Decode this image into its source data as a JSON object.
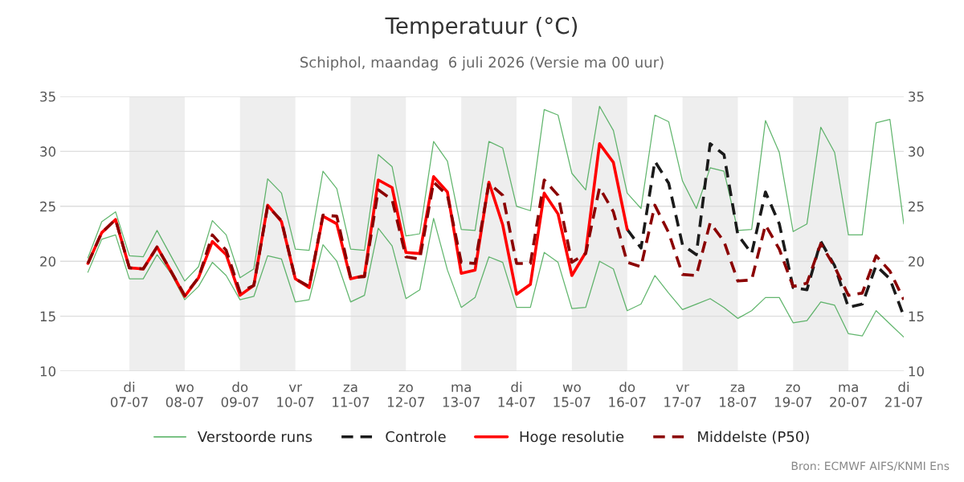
{
  "chart_data": {
    "type": "line",
    "title": "Temperatuur (°C)",
    "subtitle": "Schiphol, maandag  6 juli 2026 (Versie ma 00 uur)",
    "x": [
      "2026-07-06T06:00",
      "2026-07-06T12:00",
      "2026-07-06T18:00",
      "2026-07-07T00:00",
      "2026-07-07T06:00",
      "2026-07-07T12:00",
      "2026-07-07T18:00",
      "2026-07-08T00:00",
      "2026-07-08T06:00",
      "2026-07-08T12:00",
      "2026-07-08T18:00",
      "2026-07-09T00:00",
      "2026-07-09T06:00",
      "2026-07-09T12:00",
      "2026-07-09T18:00",
      "2026-07-10T00:00",
      "2026-07-10T06:00",
      "2026-07-10T12:00",
      "2026-07-10T18:00",
      "2026-07-11T00:00",
      "2026-07-11T06:00",
      "2026-07-11T12:00",
      "2026-07-11T18:00",
      "2026-07-12T00:00",
      "2026-07-12T06:00",
      "2026-07-12T12:00",
      "2026-07-12T18:00",
      "2026-07-13T00:00",
      "2026-07-13T06:00",
      "2026-07-13T12:00",
      "2026-07-13T18:00",
      "2026-07-14T00:00",
      "2026-07-14T06:00",
      "2026-07-14T12:00",
      "2026-07-14T18:00",
      "2026-07-15T00:00",
      "2026-07-15T06:00",
      "2026-07-15T12:00",
      "2026-07-15T18:00",
      "2026-07-16T00:00",
      "2026-07-16T06:00",
      "2026-07-16T12:00",
      "2026-07-16T18:00",
      "2026-07-17T00:00",
      "2026-07-17T06:00",
      "2026-07-17T12:00",
      "2026-07-17T18:00",
      "2026-07-18T00:00",
      "2026-07-18T06:00",
      "2026-07-18T12:00",
      "2026-07-18T18:00",
      "2026-07-19T00:00",
      "2026-07-19T06:00",
      "2026-07-19T12:00",
      "2026-07-19T18:00",
      "2026-07-20T00:00",
      "2026-07-20T06:00",
      "2026-07-20T12:00",
      "2026-07-20T18:00",
      "2026-07-21T00:00"
    ],
    "series": [
      {
        "name": "Verstoorde runs",
        "color": "#2e9e3e",
        "line_style": "solid",
        "values": [
          20.3,
          23.6,
          24.5,
          20.5,
          20.4,
          22.8,
          20.5,
          18.2,
          19.5,
          23.7,
          22.4,
          18.5,
          19.3,
          27.5,
          26.2,
          21.1,
          21.0,
          28.2,
          26.6,
          21.1,
          21.0,
          29.7,
          28.6,
          22.3,
          22.5,
          30.9,
          29.1,
          22.9,
          22.8,
          30.9,
          30.3,
          25.0,
          24.6,
          33.8,
          33.3,
          28.0,
          26.5,
          34.1,
          31.9,
          26.2,
          24.8,
          33.3,
          32.7,
          27.3,
          24.8,
          28.5,
          28.2,
          22.8,
          22.9,
          32.8,
          29.9,
          22.7,
          23.4,
          32.2,
          29.9,
          22.4,
          22.4,
          32.6,
          32.9,
          23.4
        ]
      },
      {
        "color": "#2e9e3e",
        "line_style": "solid",
        "values": [
          19.0,
          22.0,
          22.4,
          18.4,
          18.4,
          20.6,
          18.9,
          16.5,
          17.7,
          19.9,
          18.7,
          16.5,
          16.8,
          20.5,
          20.2,
          16.3,
          16.5,
          21.5,
          20.0,
          16.3,
          16.9,
          23.0,
          21.4,
          16.6,
          17.4,
          23.9,
          19.2,
          15.8,
          16.7,
          20.4,
          19.9,
          15.8,
          15.8,
          20.8,
          19.9,
          15.7,
          15.8,
          20.0,
          19.3,
          15.5,
          16.1,
          18.7,
          17.1,
          15.6,
          16.1,
          16.6,
          15.8,
          14.8,
          15.5,
          16.7,
          16.7,
          14.4,
          14.6,
          16.3,
          16.0,
          13.4,
          13.2,
          15.5,
          14.3,
          13.1
        ]
      },
      {
        "name": "Controle",
        "color": "#1a1a1a",
        "line_style": "dashed",
        "values": [
          null,
          null,
          null,
          null,
          null,
          null,
          null,
          null,
          null,
          null,
          null,
          null,
          null,
          null,
          null,
          null,
          null,
          null,
          null,
          null,
          null,
          null,
          null,
          null,
          null,
          null,
          null,
          null,
          null,
          null,
          null,
          null,
          null,
          null,
          null,
          null,
          null,
          null,
          null,
          22.9,
          21.2,
          29.1,
          27.1,
          21.5,
          20.6,
          30.7,
          29.7,
          22.4,
          20.7,
          26.3,
          23.4,
          17.6,
          17.4,
          21.8,
          19.6,
          15.8,
          16.1,
          19.6,
          18.4,
          15.0
        ]
      },
      {
        "name": "Hoge resolutie",
        "color": "#ff0000",
        "line_style": "solid",
        "values": [
          19.8,
          22.6,
          23.8,
          19.4,
          19.3,
          21.3,
          19.1,
          16.8,
          18.5,
          21.8,
          20.6,
          16.9,
          17.8,
          25.1,
          23.6,
          18.4,
          17.6,
          24.1,
          23.4,
          18.4,
          18.7,
          27.4,
          26.7,
          20.8,
          20.7,
          27.7,
          26.3,
          18.9,
          19.2,
          27.2,
          23.3,
          17.0,
          17.9,
          26.2,
          24.3,
          18.7,
          20.8,
          30.7,
          29.0,
          22.9,
          null,
          null,
          null,
          null,
          null,
          null,
          null,
          null,
          null,
          null,
          null,
          null,
          null,
          null,
          null,
          null,
          null,
          null,
          null,
          null
        ]
      },
      {
        "name": "Middelste (P50)",
        "color": "#8b0000",
        "line_style": "dashed",
        "values": [
          19.8,
          22.6,
          23.8,
          19.4,
          19.3,
          21.3,
          19.1,
          16.9,
          18.5,
          22.4,
          21.0,
          17.2,
          17.8,
          25.0,
          23.7,
          18.4,
          17.7,
          24.2,
          24.1,
          18.5,
          18.6,
          26.5,
          25.6,
          20.4,
          20.2,
          27.2,
          26.0,
          19.9,
          19.8,
          27.1,
          26.0,
          19.8,
          19.8,
          27.4,
          26.0,
          19.9,
          20.7,
          26.7,
          24.5,
          19.9,
          19.5,
          25.1,
          22.6,
          18.8,
          18.7,
          23.5,
          21.8,
          18.2,
          18.3,
          23.3,
          21.1,
          17.7,
          18.0,
          21.6,
          19.5,
          16.9,
          17.1,
          20.5,
          19.1,
          16.5
        ]
      }
    ],
    "xlim": [
      "2026-07-05T18:00",
      "2026-07-21T00:00"
    ],
    "xticks": [
      {
        "value": "2026-07-07",
        "label": "di\n07-07"
      },
      {
        "value": "2026-07-08",
        "label": "wo\n08-07"
      },
      {
        "value": "2026-07-09",
        "label": "do\n09-07"
      },
      {
        "value": "2026-07-10",
        "label": "vr\n10-07"
      },
      {
        "value": "2026-07-11",
        "label": "za\n11-07"
      },
      {
        "value": "2026-07-12",
        "label": "zo\n12-07"
      },
      {
        "value": "2026-07-13",
        "label": "ma\n13-07"
      },
      {
        "value": "2026-07-14",
        "label": "di\n14-07"
      },
      {
        "value": "2026-07-15",
        "label": "wo\n15-07"
      },
      {
        "value": "2026-07-16",
        "label": "do\n16-07"
      },
      {
        "value": "2026-07-17",
        "label": "vr\n17-07"
      },
      {
        "value": "2026-07-18",
        "label": "za\n18-07"
      },
      {
        "value": "2026-07-19",
        "label": "zo\n19-07"
      },
      {
        "value": "2026-07-20",
        "label": "ma\n20-07"
      },
      {
        "value": "2026-07-21",
        "label": "di\n21-07"
      }
    ],
    "ylim": [
      10,
      35
    ],
    "yticks": [
      10,
      15,
      20,
      25,
      30,
      35
    ],
    "y2lim": [
      10,
      35
    ],
    "y2ticks": [
      10,
      15,
      20,
      25,
      30,
      35
    ],
    "bands": [
      {
        "axis": "x",
        "from": "2026-07-07",
        "to": "2026-07-08",
        "color": "#eeeeee"
      },
      {
        "axis": "x",
        "from": "2026-07-09",
        "to": "2026-07-10",
        "color": "#eeeeee"
      },
      {
        "axis": "x",
        "from": "2026-07-11",
        "to": "2026-07-12",
        "color": "#eeeeee"
      },
      {
        "axis": "x",
        "from": "2026-07-13",
        "to": "2026-07-14",
        "color": "#eeeeee"
      },
      {
        "axis": "x",
        "from": "2026-07-15",
        "to": "2026-07-16",
        "color": "#eeeeee"
      },
      {
        "axis": "x",
        "from": "2026-07-17",
        "to": "2026-07-18",
        "color": "#eeeeee"
      },
      {
        "axis": "x",
        "from": "2026-07-19",
        "to": "2026-07-20",
        "color": "#eeeeee"
      }
    ],
    "grid": "y",
    "legend": "bottom",
    "annotations": [
      "Bron: ECMWF AIFS/KNMI Ens"
    ]
  }
}
